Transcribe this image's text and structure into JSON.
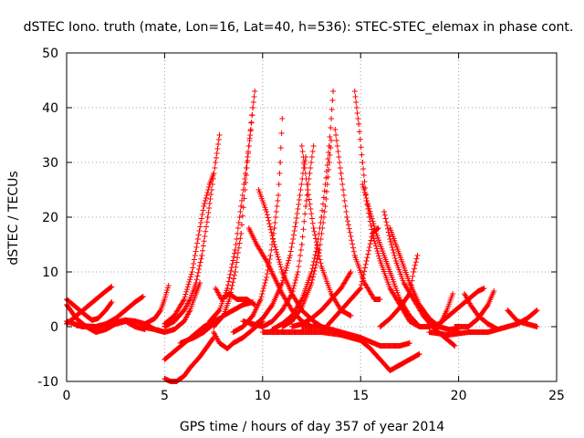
{
  "chart_data": {
    "type": "scatter",
    "title": "dSTEC Iono. truth (mate, Lon=16, Lat=40, h=536): STEC-STEC_elemax in phase cont.",
    "xlabel": "GPS time / hours of day 357 of year 2014",
    "ylabel": "dSTEC  / TECUs",
    "xlim": [
      0,
      25
    ],
    "ylim": [
      -10,
      50
    ],
    "xticks": [
      0,
      5,
      10,
      15,
      20,
      25
    ],
    "yticks": [
      -10,
      0,
      10,
      20,
      30,
      40,
      50
    ],
    "grid": true,
    "marker": "+",
    "color": "#ff0000",
    "arcs": [
      [
        [
          0.0,
          5.0
        ],
        [
          0.5,
          3.5
        ],
        [
          1.0,
          2.0
        ],
        [
          1.3,
          1.2
        ],
        [
          1.6,
          1.5
        ],
        [
          2.0,
          3.0
        ],
        [
          2.3,
          4.5
        ]
      ],
      [
        [
          0.0,
          0.5
        ],
        [
          0.5,
          2.0
        ],
        [
          1.0,
          3.5
        ],
        [
          1.5,
          5.0
        ],
        [
          2.0,
          6.5
        ],
        [
          2.3,
          7.3
        ]
      ],
      [
        [
          0.0,
          4.0
        ],
        [
          0.5,
          1.5
        ],
        [
          1.0,
          0.0
        ],
        [
          1.5,
          -1.0
        ],
        [
          2.0,
          -0.5
        ],
        [
          2.5,
          0.5
        ],
        [
          3.0,
          1.0
        ]
      ],
      [
        [
          0.0,
          1.0
        ],
        [
          0.8,
          0.0
        ],
        [
          1.5,
          0.0
        ],
        [
          2.0,
          0.5
        ],
        [
          2.5,
          1.5
        ],
        [
          3.0,
          3.0
        ],
        [
          3.5,
          4.5
        ],
        [
          3.9,
          5.5
        ]
      ],
      [
        [
          0.5,
          0.2
        ],
        [
          1.5,
          0.0
        ],
        [
          2.5,
          0.5
        ],
        [
          3.0,
          1.0
        ],
        [
          3.5,
          0.0
        ],
        [
          4.0,
          -0.5
        ]
      ],
      [
        [
          2.0,
          0.3
        ],
        [
          2.5,
          0.8
        ],
        [
          3.0,
          1.2
        ],
        [
          3.5,
          1.0
        ],
        [
          4.0,
          0.5
        ],
        [
          4.5,
          -0.5
        ],
        [
          5.0,
          -1.0
        ]
      ],
      [
        [
          4.0,
          0.5
        ],
        [
          4.5,
          1.5
        ],
        [
          4.8,
          3.0
        ],
        [
          5.0,
          5.0
        ],
        [
          5.2,
          7.5
        ]
      ],
      [
        [
          3.8,
          0.0
        ],
        [
          4.5,
          -0.5
        ],
        [
          5.0,
          -1.0
        ],
        [
          5.5,
          -0.5
        ],
        [
          6.0,
          1.0
        ],
        [
          6.3,
          3.0
        ],
        [
          6.6,
          6.0
        ],
        [
          6.8,
          8.0
        ]
      ],
      [
        [
          5.0,
          0.0
        ],
        [
          5.5,
          1.0
        ],
        [
          6.0,
          3.0
        ],
        [
          6.3,
          5.0
        ],
        [
          6.6,
          8.0
        ],
        [
          6.9,
          13.0
        ],
        [
          7.2,
          20.0
        ],
        [
          7.4,
          25.0
        ],
        [
          7.6,
          30.0
        ],
        [
          7.8,
          35.0
        ]
      ],
      [
        [
          5.0,
          0.5
        ],
        [
          5.5,
          2.0
        ],
        [
          6.0,
          5.0
        ],
        [
          6.4,
          10.0
        ],
        [
          6.7,
          16.0
        ],
        [
          7.0,
          22.0
        ],
        [
          7.3,
          26.0
        ],
        [
          7.5,
          28.0
        ]
      ],
      [
        [
          5.0,
          -9.5
        ],
        [
          5.3,
          -10.0
        ],
        [
          5.6,
          -10.0
        ],
        [
          6.0,
          -9.0
        ],
        [
          6.3,
          -7.5
        ],
        [
          6.8,
          -5.5
        ],
        [
          7.2,
          -3.5
        ],
        [
          7.5,
          -2.0
        ]
      ],
      [
        [
          5.0,
          -6.0
        ],
        [
          5.5,
          -4.5
        ],
        [
          6.0,
          -3.0
        ],
        [
          6.5,
          -1.5
        ],
        [
          7.0,
          0.0
        ],
        [
          7.5,
          1.0
        ],
        [
          7.8,
          1.5
        ]
      ],
      [
        [
          5.8,
          -3.0
        ],
        [
          6.5,
          -2.0
        ],
        [
          7.0,
          -1.0
        ],
        [
          7.5,
          0.5
        ],
        [
          8.0,
          2.0
        ],
        [
          8.5,
          3.0
        ],
        [
          9.0,
          4.0
        ],
        [
          9.5,
          4.5
        ]
      ],
      [
        [
          7.5,
          -1.0
        ],
        [
          7.8,
          -3.0
        ],
        [
          8.2,
          -4.0
        ],
        [
          8.5,
          -3.0
        ],
        [
          9.0,
          -2.0
        ],
        [
          9.5,
          -0.5
        ],
        [
          10.0,
          1.0
        ]
      ],
      [
        [
          7.6,
          7.0
        ],
        [
          7.9,
          5.0
        ],
        [
          8.3,
          6.0
        ],
        [
          8.7,
          5.0
        ],
        [
          9.2,
          5.0
        ],
        [
          9.6,
          4.0
        ]
      ],
      [
        [
          7.5,
          0.0
        ],
        [
          8.0,
          2.0
        ],
        [
          8.3,
          5.0
        ],
        [
          8.6,
          10.0
        ],
        [
          8.9,
          17.0
        ],
        [
          9.1,
          25.0
        ],
        [
          9.3,
          33.0
        ],
        [
          9.5,
          40.0
        ],
        [
          9.6,
          43.0
        ]
      ],
      [
        [
          7.3,
          1.0
        ],
        [
          7.8,
          3.0
        ],
        [
          8.2,
          7.0
        ],
        [
          8.6,
          14.0
        ],
        [
          8.9,
          22.0
        ],
        [
          9.2,
          30.0
        ],
        [
          9.4,
          36.0
        ],
        [
          9.5,
          40.0
        ]
      ],
      [
        [
          8.5,
          -1.0
        ],
        [
          9.0,
          0.0
        ],
        [
          9.5,
          2.0
        ],
        [
          9.9,
          5.0
        ],
        [
          10.2,
          9.0
        ],
        [
          10.4,
          13.0
        ],
        [
          10.6,
          18.0
        ],
        [
          10.8,
          24.0
        ],
        [
          10.9,
          30.0
        ],
        [
          11.0,
          38.0
        ]
      ],
      [
        [
          9.3,
          18.0
        ],
        [
          9.7,
          15.0
        ],
        [
          10.2,
          12.0
        ],
        [
          10.6,
          9.0
        ],
        [
          11.0,
          6.0
        ],
        [
          11.5,
          3.0
        ],
        [
          12.0,
          1.0
        ],
        [
          12.5,
          0.0
        ]
      ],
      [
        [
          9.8,
          25.0
        ],
        [
          10.2,
          21.0
        ],
        [
          10.6,
          15.0
        ],
        [
          11.0,
          10.0
        ],
        [
          11.5,
          6.0
        ],
        [
          12.0,
          3.0
        ],
        [
          12.6,
          1.0
        ],
        [
          13.0,
          0.0
        ]
      ],
      [
        [
          9.0,
          1.0
        ],
        [
          9.5,
          0.5
        ],
        [
          10.0,
          0.0
        ],
        [
          10.5,
          1.0
        ],
        [
          11.0,
          3.0
        ],
        [
          11.5,
          6.0
        ],
        [
          11.8,
          10.0
        ],
        [
          12.0,
          15.0
        ],
        [
          12.2,
          22.0
        ],
        [
          12.4,
          28.0
        ],
        [
          12.6,
          33.0
        ]
      ],
      [
        [
          9.5,
          0.0
        ],
        [
          10.0,
          1.5
        ],
        [
          10.5,
          4.0
        ],
        [
          11.0,
          8.0
        ],
        [
          11.4,
          13.0
        ],
        [
          11.7,
          19.0
        ],
        [
          11.9,
          24.0
        ],
        [
          12.1,
          29.0
        ],
        [
          12.2,
          31.0
        ]
      ],
      [
        [
          10.5,
          -0.5
        ],
        [
          11.0,
          0.5
        ],
        [
          11.5,
          2.0
        ],
        [
          12.0,
          5.0
        ],
        [
          12.5,
          10.0
        ],
        [
          12.8,
          15.0
        ],
        [
          13.0,
          20.0
        ],
        [
          13.2,
          26.0
        ],
        [
          13.4,
          33.0
        ],
        [
          13.5,
          38.0
        ],
        [
          13.6,
          43.0
        ]
      ],
      [
        [
          11.0,
          0.0
        ],
        [
          11.5,
          1.0
        ],
        [
          12.0,
          3.5
        ],
        [
          12.5,
          8.0
        ],
        [
          12.9,
          14.0
        ],
        [
          13.2,
          22.0
        ],
        [
          13.4,
          30.0
        ],
        [
          13.5,
          34.0
        ]
      ],
      [
        [
          12.0,
          33.0
        ],
        [
          12.3,
          25.0
        ],
        [
          12.6,
          18.0
        ],
        [
          13.0,
          11.0
        ],
        [
          13.5,
          6.0
        ],
        [
          14.0,
          3.0
        ],
        [
          14.5,
          2.0
        ]
      ],
      [
        [
          13.7,
          36.0
        ],
        [
          14.0,
          28.0
        ],
        [
          14.3,
          20.0
        ],
        [
          14.7,
          13.0
        ],
        [
          15.2,
          8.0
        ],
        [
          15.7,
          5.0
        ],
        [
          16.0,
          5.0
        ]
      ],
      [
        [
          14.7,
          43.0
        ],
        [
          14.9,
          37.0
        ],
        [
          15.1,
          30.0
        ],
        [
          15.3,
          23.0
        ],
        [
          15.6,
          17.0
        ],
        [
          16.0,
          12.0
        ],
        [
          16.5,
          7.0
        ],
        [
          17.0,
          4.0
        ],
        [
          17.5,
          1.0
        ],
        [
          18.0,
          0.0
        ]
      ],
      [
        [
          15.1,
          26.0
        ],
        [
          15.4,
          22.0
        ],
        [
          15.8,
          17.0
        ],
        [
          16.2,
          13.0
        ],
        [
          16.6,
          9.0
        ],
        [
          17.0,
          5.0
        ],
        [
          17.5,
          2.0
        ],
        [
          18.0,
          0.0
        ]
      ],
      [
        [
          13.0,
          -1.0
        ],
        [
          13.5,
          1.0
        ],
        [
          14.0,
          3.0
        ],
        [
          14.5,
          5.0
        ],
        [
          15.0,
          7.0
        ],
        [
          15.3,
          12.0
        ],
        [
          15.6,
          17.0
        ],
        [
          15.9,
          18.0
        ]
      ],
      [
        [
          11.5,
          0.0
        ],
        [
          12.0,
          0.5
        ],
        [
          12.5,
          1.5
        ],
        [
          13.0,
          3.0
        ],
        [
          13.5,
          5.0
        ],
        [
          14.0,
          7.0
        ],
        [
          14.5,
          10.0
        ]
      ],
      [
        [
          10.0,
          -1.0
        ],
        [
          11.0,
          -1.0
        ],
        [
          12.0,
          -1.0
        ],
        [
          13.0,
          -1.0
        ],
        [
          14.0,
          -1.5
        ],
        [
          15.0,
          -2.5
        ],
        [
          15.5,
          -4.0
        ],
        [
          16.0,
          -6.0
        ],
        [
          16.5,
          -8.0
        ],
        [
          17.0,
          -7.0
        ],
        [
          17.5,
          -6.0
        ],
        [
          18.0,
          -5.0
        ]
      ],
      [
        [
          12.0,
          0.0
        ],
        [
          13.0,
          0.0
        ],
        [
          14.0,
          -1.0
        ],
        [
          15.0,
          -2.0
        ],
        [
          16.0,
          -3.5
        ],
        [
          17.0,
          -3.5
        ],
        [
          17.5,
          -3.0
        ]
      ],
      [
        [
          16.2,
          21.0
        ],
        [
          16.5,
          16.0
        ],
        [
          16.8,
          12.0
        ],
        [
          17.2,
          8.0
        ],
        [
          17.7,
          5.0
        ],
        [
          18.2,
          2.0
        ],
        [
          18.8,
          -0.5
        ],
        [
          19.3,
          -2.0
        ],
        [
          19.8,
          -3.5
        ]
      ],
      [
        [
          16.5,
          18.0
        ],
        [
          17.0,
          13.0
        ],
        [
          17.5,
          8.0
        ],
        [
          18.0,
          4.0
        ],
        [
          18.5,
          1.5
        ],
        [
          19.0,
          0.0
        ],
        [
          19.5,
          -0.5
        ],
        [
          20.0,
          -0.5
        ]
      ],
      [
        [
          16.0,
          0.0
        ],
        [
          16.5,
          1.5
        ],
        [
          17.0,
          3.5
        ],
        [
          17.5,
          6.0
        ],
        [
          17.7,
          10.0
        ],
        [
          17.9,
          13.0
        ]
      ],
      [
        [
          18.0,
          0.0
        ],
        [
          18.5,
          0.0
        ],
        [
          19.0,
          0.5
        ],
        [
          19.5,
          2.0
        ],
        [
          20.0,
          3.5
        ],
        [
          20.5,
          5.0
        ],
        [
          21.0,
          6.5
        ],
        [
          21.3,
          7.0
        ]
      ],
      [
        [
          18.5,
          0.5
        ],
        [
          19.0,
          0.0
        ],
        [
          19.4,
          3.0
        ],
        [
          19.7,
          6.0
        ]
      ],
      [
        [
          19.8,
          0.0
        ],
        [
          20.5,
          0.0
        ],
        [
          21.0,
          1.5
        ],
        [
          21.5,
          4.0
        ],
        [
          21.8,
          6.5
        ]
      ],
      [
        [
          18.5,
          -1.0
        ],
        [
          19.5,
          -1.5
        ],
        [
          20.5,
          -1.0
        ],
        [
          21.0,
          -1.0
        ],
        [
          21.5,
          -1.0
        ],
        [
          22.0,
          -0.5
        ]
      ],
      [
        [
          20.3,
          6.0
        ],
        [
          20.6,
          4.0
        ],
        [
          21.0,
          2.0
        ],
        [
          21.5,
          0.5
        ],
        [
          22.0,
          -0.5
        ],
        [
          22.5,
          0.0
        ]
      ],
      [
        [
          22.5,
          3.0
        ],
        [
          23.0,
          1.0
        ],
        [
          23.5,
          0.5
        ],
        [
          24.0,
          0.0
        ]
      ],
      [
        [
          22.5,
          0.0
        ],
        [
          23.0,
          0.5
        ],
        [
          23.5,
          1.5
        ],
        [
          24.0,
          3.0
        ]
      ]
    ]
  }
}
